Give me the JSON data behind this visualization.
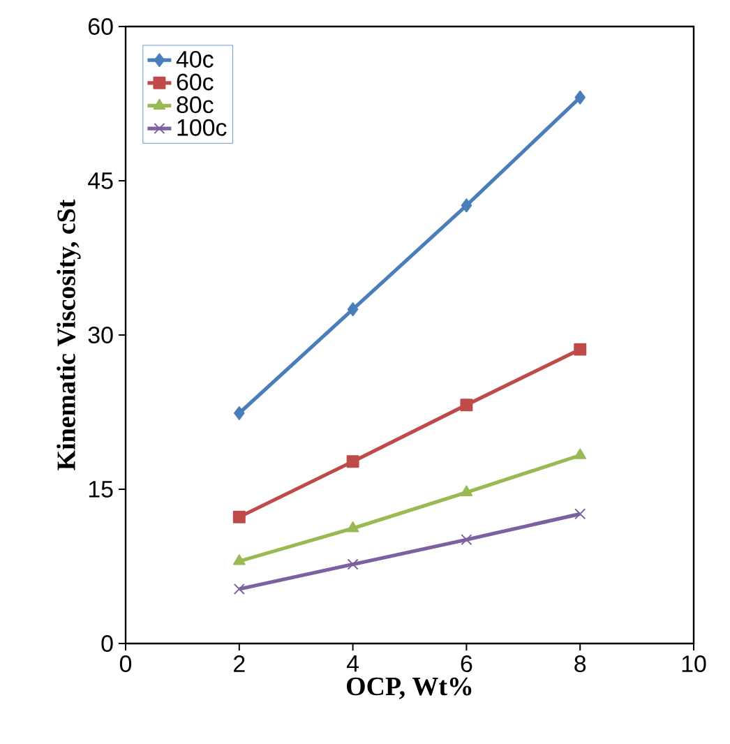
{
  "chart_data": {
    "type": "line",
    "xlabel": "OCP, Wt%",
    "ylabel": "Kinematic Viscosity, cSt",
    "x": [
      2,
      4,
      6,
      8
    ],
    "series": [
      {
        "name": "40c",
        "color": "#4a7ebb",
        "marker": "diamond",
        "values": [
          22.4,
          32.5,
          42.6,
          53.1
        ]
      },
      {
        "name": "60c",
        "color": "#be4b48",
        "marker": "square",
        "values": [
          12.3,
          17.7,
          23.2,
          28.6
        ]
      },
      {
        "name": "80c",
        "color": "#98b954",
        "marker": "triangle",
        "values": [
          8.0,
          11.2,
          14.7,
          18.3
        ]
      },
      {
        "name": "100c",
        "color": "#7d60a0",
        "marker": "cross",
        "values": [
          5.3,
          7.7,
          10.1,
          12.6
        ]
      }
    ],
    "xlim": [
      0,
      10
    ],
    "xticks": [
      0,
      2,
      4,
      6,
      8,
      10
    ],
    "ylim": [
      0,
      60
    ],
    "yticks": [
      0,
      15,
      30,
      45,
      60
    ],
    "legend": "top left",
    "grid": false,
    "line_style": "solid"
  }
}
